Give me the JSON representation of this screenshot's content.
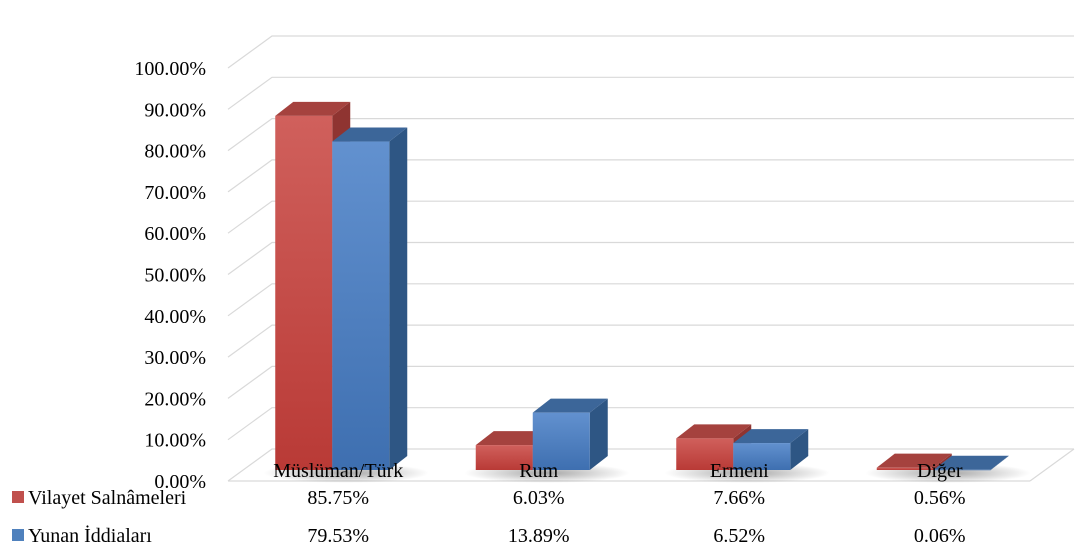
{
  "chart_data": {
    "type": "bar",
    "categories": [
      "Müslüman/Türk",
      "Rum",
      "Ermeni",
      "Diğer"
    ],
    "series": [
      {
        "name": "Vilayet Salnâmeleri",
        "values": [
          85.75,
          6.03,
          7.66,
          0.56
        ],
        "labels": [
          "85.75%",
          "6.03%",
          "7.66%",
          "0.56%"
        ],
        "color": "#c0504d"
      },
      {
        "name": "Yunan İddiaları",
        "values": [
          79.53,
          13.89,
          6.52,
          0.06
        ],
        "labels": [
          "79.53%",
          "13.89%",
          "6.52%",
          "0.06%"
        ],
        "color": "#4f81bd"
      }
    ],
    "ylim": [
      0,
      100
    ],
    "yticks": [
      "0.00%",
      "10.00%",
      "20.00%",
      "30.00%",
      "40.00%",
      "50.00%",
      "60.00%",
      "70.00%",
      "80.00%",
      "90.00%",
      "100.00%"
    ],
    "style": "3d-clustered-column",
    "grid": true,
    "legend": "data-table-left"
  }
}
